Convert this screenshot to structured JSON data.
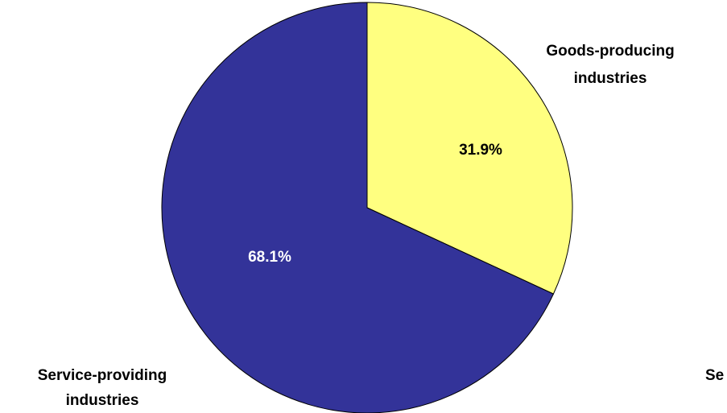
{
  "chart_data": {
    "type": "pie",
    "slices": [
      {
        "label_lines": [
          "Goods-producing",
          "industries"
        ],
        "value": 31.9,
        "value_label": "31.9%",
        "color": "#ffff80",
        "value_label_color": "#000000"
      },
      {
        "label_lines": [
          "Service-providing",
          "industries"
        ],
        "value": 68.1,
        "value_label": "68.1%",
        "color": "#333399",
        "value_label_color": "#ffffff"
      }
    ],
    "cropped_fragment": "Se"
  }
}
